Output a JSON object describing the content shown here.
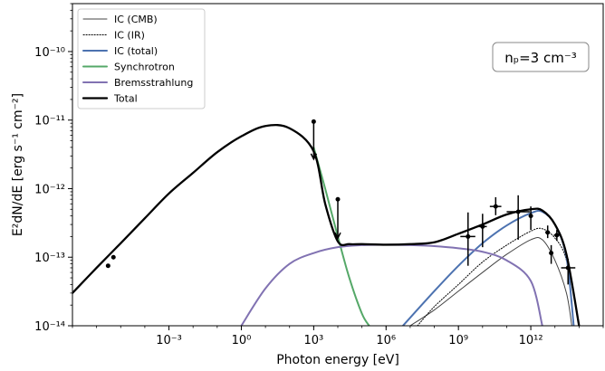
{
  "chart_data": {
    "type": "line",
    "title": "",
    "xlabel": "Photon energy [eV]",
    "ylabel": "E²dN/dE [erg s⁻¹ cm⁻²]",
    "xscale": "log",
    "yscale": "log",
    "xlim": [
      1e-07,
      1000000000000000.0
    ],
    "ylim": [
      1e-14,
      5e-10
    ],
    "xticks": [
      {
        "value": 0.001,
        "label": "10⁻³"
      },
      {
        "value": 1,
        "label": "10⁰"
      },
      {
        "value": 1000,
        "label": "10³"
      },
      {
        "value": 1000000,
        "label": "10⁶"
      },
      {
        "value": 1000000000,
        "label": "10⁹"
      },
      {
        "value": 1000000000000,
        "label": "10¹²"
      }
    ],
    "yticks": [
      {
        "value": 1e-14,
        "label": "10⁻¹⁴"
      },
      {
        "value": 1e-13,
        "label": "10⁻¹³"
      },
      {
        "value": 1e-12,
        "label": "10⁻¹²"
      },
      {
        "value": 1e-11,
        "label": "10⁻¹¹"
      },
      {
        "value": 1e-10,
        "label": "10⁻¹⁰"
      }
    ],
    "grid": false,
    "legend_position": "top-left",
    "annotation": "nₚ=3 cm⁻³",
    "series": [
      {
        "name": "IC (CMB)",
        "color": "#444444",
        "style": "solid",
        "x": [
          10000000.0,
          100000000.0,
          1000000000.0,
          10000000000.0,
          100000000000.0,
          1000000000000.0,
          3000000000000.0,
          10000000000000.0,
          30000000000000.0,
          50000000000000.0
        ],
        "y": [
          1e-14,
          1.7e-14,
          3.2e-14,
          6e-14,
          1.1e-13,
          1.8e-13,
          1.8e-13,
          9e-14,
          3e-14,
          1e-14
        ]
      },
      {
        "name": "IC (IR)",
        "color": "#000000",
        "style": "dotted",
        "x": [
          20000000.0,
          100000000.0,
          1000000000.0,
          10000000000.0,
          100000000000.0,
          1000000000000.0,
          3000000000000.0,
          10000000000000.0,
          30000000000000.0,
          100000000000000.0
        ],
        "y": [
          1e-14,
          1.9e-14,
          4e-14,
          8.5e-14,
          1.5e-13,
          2.4e-13,
          2.6e-13,
          1.9e-13,
          9e-14,
          1e-14
        ]
      },
      {
        "name": "IC (total)",
        "color": "#4c72b0",
        "style": "solid",
        "x": [
          5000000.0,
          100000000.0,
          1000000000.0,
          10000000000.0,
          100000000000.0,
          1000000000000.0,
          3000000000000.0,
          10000000000000.0,
          30000000000000.0,
          60000000000000.0
        ],
        "y": [
          1e-14,
          3.2e-14,
          7.5e-14,
          1.6e-13,
          2.9e-13,
          4.4e-13,
          4.6e-13,
          3e-13,
          1e-13,
          1e-14
        ]
      },
      {
        "name": "Synchrotron",
        "color": "#55a868",
        "style": "solid",
        "x": [
          1000,
          3000,
          10000,
          30000,
          100000,
          200000
        ],
        "y": [
          4e-12,
          1e-12,
          2e-13,
          5e-14,
          1.5e-14,
          1e-14
        ]
      },
      {
        "name": "Bremsstrahlung",
        "color": "#8172b2",
        "style": "solid",
        "x": [
          1,
          10,
          100,
          1000,
          10000,
          100000,
          1000000,
          10000000,
          100000000,
          1000000000,
          10000000000,
          100000000000,
          1000000000000,
          3000000000000
        ],
        "y": [
          1e-14,
          3.5e-14,
          8e-14,
          1.15e-13,
          1.4e-13,
          1.5e-13,
          1.52e-13,
          1.5e-13,
          1.45e-13,
          1.35e-13,
          1.2e-13,
          9e-14,
          4.5e-14,
          1e-14
        ]
      },
      {
        "name": "Total",
        "color": "#000000",
        "style": "solid-thick",
        "x": [
          1e-07,
          1e-06,
          1e-05,
          0.0001,
          0.001,
          0.01,
          0.1,
          1,
          10,
          100,
          1000,
          3000,
          10000,
          30000,
          100000,
          1000000,
          10000000,
          100000000,
          1000000000,
          10000000000,
          100000000000,
          1000000000000,
          3000000000000,
          10000000000000,
          30000000000000,
          100000000000000
        ],
        "y": [
          3e-14,
          7e-14,
          1.6e-13,
          3.7e-13,
          8.5e-13,
          1.7e-12,
          3.4e-12,
          5.8e-12,
          8.2e-12,
          7.6e-12,
          3.5e-12,
          6e-13,
          1.7e-13,
          1.55e-13,
          1.55e-13,
          1.52e-13,
          1.55e-13,
          1.65e-13,
          2.2e-13,
          3e-13,
          4.2e-13,
          5e-13,
          4.8e-13,
          3e-13,
          1.1e-13,
          1e-14
        ]
      }
    ],
    "data_points": [
      {
        "x": 3e-06,
        "y": 7.5e-14,
        "xlo": 2.5e-06,
        "xhi": 3.6e-06,
        "ylo": 7e-14,
        "yhi": 8e-14,
        "upper_limit": false
      },
      {
        "x": 5e-06,
        "y": 1e-13,
        "xlo": 4.2e-06,
        "xhi": 6e-06,
        "ylo": 9.3e-14,
        "yhi": 1.07e-13,
        "upper_limit": false
      },
      {
        "x": 1000,
        "y": 9.5e-12,
        "xlo": 850,
        "xhi": 1150,
        "ylo": 2.7e-12,
        "yhi": 9.5e-12,
        "upper_limit": true
      },
      {
        "x": 10000,
        "y": 7e-13,
        "xlo": 8500,
        "xhi": 11500,
        "ylo": 1.9e-13,
        "yhi": 7e-13,
        "upper_limit": true
      },
      {
        "x": 2500000000,
        "y": 2e-13,
        "xlo": 1200000000.0,
        "xhi": 5000000000.0,
        "ylo": 7.5e-14,
        "yhi": 4.5e-13,
        "upper_limit": false
      },
      {
        "x": 10000000000,
        "y": 2.8e-13,
        "xlo": 6000000000.0,
        "xhi": 15000000000.0,
        "ylo": 1.4e-13,
        "yhi": 4.3e-13,
        "upper_limit": false
      },
      {
        "x": 35000000000,
        "y": 5.5e-13,
        "xlo": 20000000000.0,
        "xhi": 60000000000.0,
        "ylo": 4.1e-13,
        "yhi": 7.5e-13,
        "upper_limit": false
      },
      {
        "x": 300000000000,
        "y": 4.6e-13,
        "xlo": 100000000000.0,
        "xhi": 900000000000.0,
        "ylo": 1.8e-13,
        "yhi": 8e-13,
        "upper_limit": false
      },
      {
        "x": 1000000000000,
        "y": 4e-13,
        "xlo": 1000000000000.0,
        "xhi": 1000000000000.0,
        "ylo": 2.5e-13,
        "yhi": 5.5e-13,
        "upper_limit": false
      },
      {
        "x": 5000000000000,
        "y": 2.3e-13,
        "xlo": 4000000000000.0,
        "xhi": 6000000000000.0,
        "ylo": 1.9e-13,
        "yhi": 2.9e-13,
        "upper_limit": false
      },
      {
        "x": 7000000000000,
        "y": 1.15e-13,
        "xlo": 6000000000000.0,
        "xhi": 8500000000000.0,
        "ylo": 8e-14,
        "yhi": 1.5e-13,
        "upper_limit": false
      },
      {
        "x": 12000000000000,
        "y": 2.1e-13,
        "xlo": 9000000000000.0,
        "xhi": 16000000000000.0,
        "ylo": 1.75e-13,
        "yhi": 2.5e-13,
        "upper_limit": false
      },
      {
        "x": 35000000000000,
        "y": 7e-14,
        "xlo": 18000000000000.0,
        "xhi": 70000000000000.0,
        "ylo": 4e-14,
        "yhi": 9.5e-14,
        "upper_limit": false
      }
    ]
  }
}
